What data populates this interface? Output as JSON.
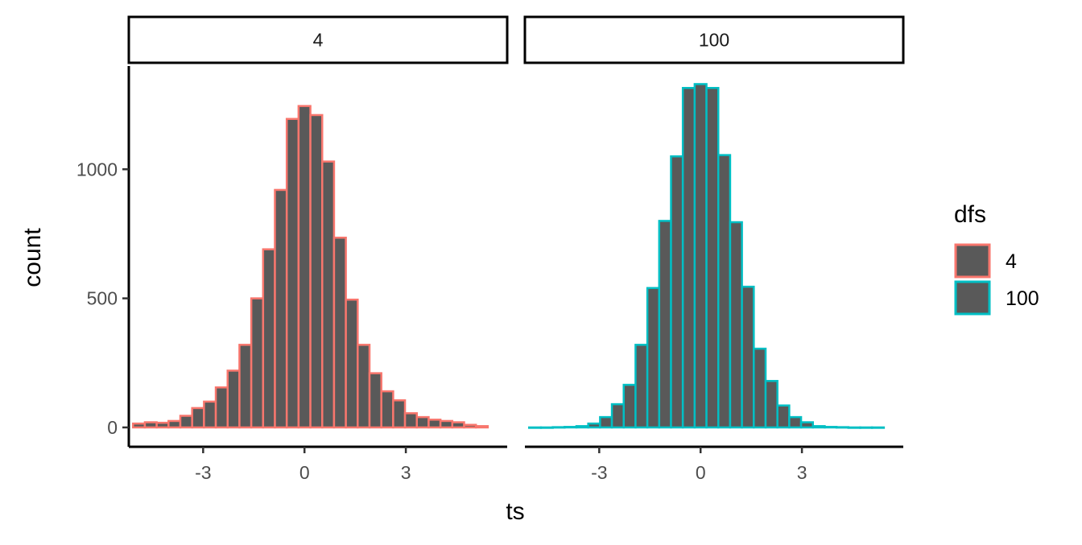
{
  "chart_data": {
    "type": "bar",
    "subtype": "histogram-faceted",
    "xlabel": "ts",
    "ylabel": "count",
    "xlim": [
      -5.2,
      6.0
    ],
    "ylim": [
      -75,
      1400
    ],
    "x_ticks": [
      {
        "value": -3,
        "label": "-3"
      },
      {
        "value": 0,
        "label": "0"
      },
      {
        "value": 3,
        "label": "3"
      }
    ],
    "y_ticks": [
      {
        "value": 0,
        "label": "0"
      },
      {
        "value": 500,
        "label": "500"
      },
      {
        "value": 1000,
        "label": "1000"
      }
    ],
    "bin_width": 0.35,
    "fill_color": "#595959",
    "grid": false,
    "legend": {
      "title": "dfs",
      "position": "right",
      "entries": [
        {
          "label": "4",
          "color": "#F8766D"
        },
        {
          "label": "100",
          "color": "#00BFC4"
        }
      ]
    },
    "panels": [
      {
        "strip": "4",
        "outline_color": "#F8766D",
        "bins": [
          {
            "x": -4.9,
            "count": 15
          },
          {
            "x": -4.55,
            "count": 20
          },
          {
            "x": -4.2,
            "count": 18
          },
          {
            "x": -3.85,
            "count": 25
          },
          {
            "x": -3.5,
            "count": 45
          },
          {
            "x": -3.15,
            "count": 75
          },
          {
            "x": -2.8,
            "count": 100
          },
          {
            "x": -2.45,
            "count": 155
          },
          {
            "x": -2.1,
            "count": 220
          },
          {
            "x": -1.75,
            "count": 320
          },
          {
            "x": -1.4,
            "count": 500
          },
          {
            "x": -1.05,
            "count": 690
          },
          {
            "x": -0.7,
            "count": 920
          },
          {
            "x": -0.35,
            "count": 1195
          },
          {
            "x": 0.0,
            "count": 1245
          },
          {
            "x": 0.35,
            "count": 1210
          },
          {
            "x": 0.7,
            "count": 1030
          },
          {
            "x": 1.05,
            "count": 735
          },
          {
            "x": 1.4,
            "count": 495
          },
          {
            "x": 1.75,
            "count": 320
          },
          {
            "x": 2.1,
            "count": 210
          },
          {
            "x": 2.45,
            "count": 140
          },
          {
            "x": 2.8,
            "count": 105
          },
          {
            "x": 3.15,
            "count": 55
          },
          {
            "x": 3.5,
            "count": 40
          },
          {
            "x": 3.85,
            "count": 30
          },
          {
            "x": 4.2,
            "count": 25
          },
          {
            "x": 4.55,
            "count": 20
          },
          {
            "x": 4.9,
            "count": 10
          },
          {
            "x": 5.25,
            "count": 5
          }
        ]
      },
      {
        "strip": "100",
        "outline_color": "#00BFC4",
        "bins": [
          {
            "x": -4.9,
            "count": 0
          },
          {
            "x": -4.55,
            "count": 0
          },
          {
            "x": -4.2,
            "count": 1
          },
          {
            "x": -3.85,
            "count": 2
          },
          {
            "x": -3.5,
            "count": 5
          },
          {
            "x": -3.15,
            "count": 15
          },
          {
            "x": -2.8,
            "count": 40
          },
          {
            "x": -2.45,
            "count": 90
          },
          {
            "x": -2.1,
            "count": 165
          },
          {
            "x": -1.75,
            "count": 320
          },
          {
            "x": -1.4,
            "count": 540
          },
          {
            "x": -1.05,
            "count": 800
          },
          {
            "x": -0.7,
            "count": 1050
          },
          {
            "x": -0.35,
            "count": 1315
          },
          {
            "x": 0.0,
            "count": 1330
          },
          {
            "x": 0.35,
            "count": 1315
          },
          {
            "x": 0.7,
            "count": 1055
          },
          {
            "x": 1.05,
            "count": 795
          },
          {
            "x": 1.4,
            "count": 545
          },
          {
            "x": 1.75,
            "count": 305
          },
          {
            "x": 2.1,
            "count": 180
          },
          {
            "x": 2.45,
            "count": 85
          },
          {
            "x": 2.8,
            "count": 40
          },
          {
            "x": 3.15,
            "count": 20
          },
          {
            "x": 3.5,
            "count": 5
          },
          {
            "x": 3.85,
            "count": 2
          },
          {
            "x": 4.2,
            "count": 1
          },
          {
            "x": 4.55,
            "count": 0
          },
          {
            "x": 4.9,
            "count": 0
          },
          {
            "x": 5.25,
            "count": 0
          }
        ]
      }
    ]
  }
}
